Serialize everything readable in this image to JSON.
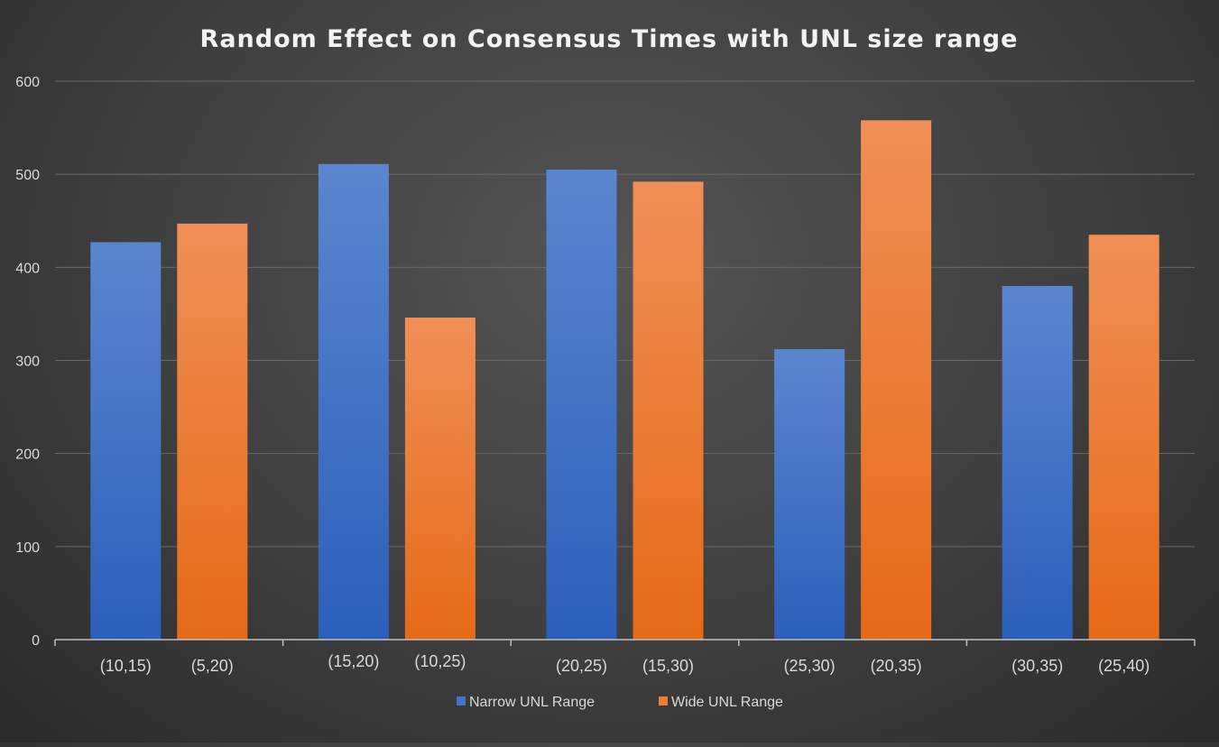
{
  "chart_data": {
    "type": "bar",
    "title": "Random Effect on Consensus Times with UNL size range",
    "xlabel": "",
    "ylabel": "",
    "ylim": [
      0,
      600
    ],
    "yticks": [
      0,
      100,
      200,
      300,
      400,
      500,
      600
    ],
    "grid": true,
    "legend_position": "bottom",
    "groups": 5,
    "series": [
      {
        "name": "Narrow UNL Range",
        "color": "#4472c4",
        "labels": [
          "(10,15)",
          "(15,20)",
          "(20,25)",
          "(25,30)",
          "(30,35)"
        ],
        "values": [
          427,
          511,
          505,
          312,
          380
        ]
      },
      {
        "name": "Wide UNL Range",
        "color": "#ed7d31",
        "labels": [
          "(5,20)",
          "(10,25)",
          "(15,30)",
          "(20,35)",
          "(25,40)"
        ],
        "values": [
          447,
          346,
          492,
          558,
          435
        ]
      }
    ]
  }
}
